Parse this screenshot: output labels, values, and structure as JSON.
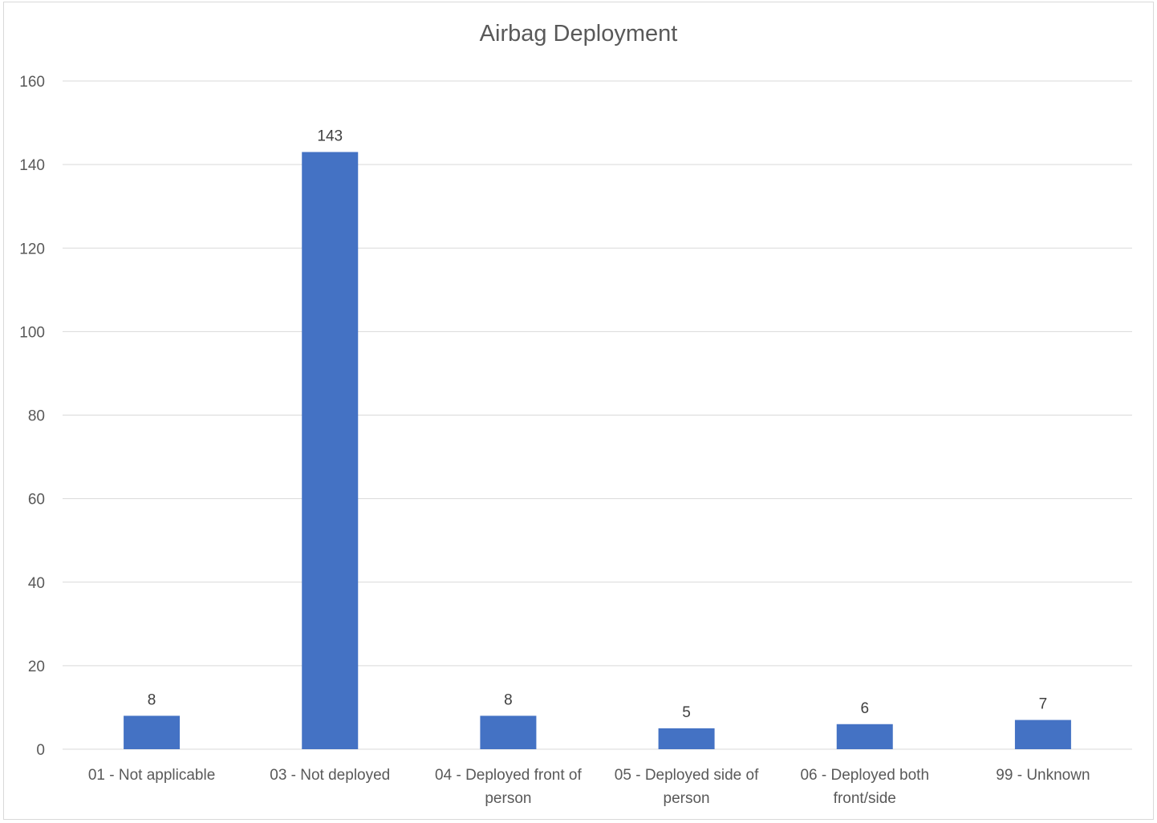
{
  "chart_data": {
    "type": "bar",
    "title": "Airbag Deployment",
    "categories": [
      [
        "01 - Not applicable"
      ],
      [
        "03 - Not deployed"
      ],
      [
        "04 - Deployed front of",
        "person"
      ],
      [
        "05 - Deployed side of",
        "person"
      ],
      [
        "06 - Deployed both",
        "front/side"
      ],
      [
        "99 - Unknown"
      ]
    ],
    "values": [
      8,
      143,
      8,
      5,
      6,
      7
    ],
    "data_labels": [
      "8",
      "143",
      "8",
      "5",
      "6",
      "7"
    ],
    "ylim": [
      0,
      160
    ],
    "yticks": [
      0,
      20,
      40,
      60,
      80,
      100,
      120,
      140,
      160
    ],
    "grid": true,
    "colors": {
      "bar": "#4472C4",
      "grid": "#d9d9d9",
      "axis_text": "#595959"
    }
  }
}
